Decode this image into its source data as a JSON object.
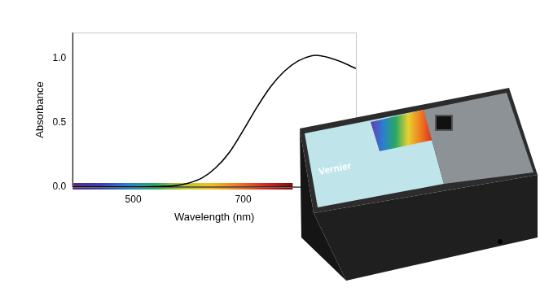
{
  "chart_data": {
    "type": "line",
    "x_label": "Wavelength (nm)",
    "y_label": "Absorbance",
    "x": [
      390,
      450,
      500,
      550,
      575,
      600,
      625,
      650,
      675,
      700,
      725,
      750,
      775,
      800,
      825,
      840,
      860,
      880,
      900,
      905
    ],
    "values": [
      0,
      0,
      0,
      0.005,
      0.01,
      0.03,
      0.07,
      0.15,
      0.27,
      0.44,
      0.62,
      0.78,
      0.9,
      0.98,
      1.02,
      1.02,
      1.0,
      0.97,
      0.93,
      0.92
    ],
    "color": "#000000",
    "xlim": [
      390,
      905
    ],
    "xticks": [
      500,
      700
    ],
    "ylim": [
      0,
      1.2
    ],
    "yticks": [
      {
        "value": 0,
        "label": "0.0"
      },
      0.5,
      {
        "value": 1,
        "label": "1.0"
      }
    ],
    "grid": false,
    "spectrum_band": [
      390,
      790
    ]
  },
  "device": {
    "label": "Vernier"
  }
}
